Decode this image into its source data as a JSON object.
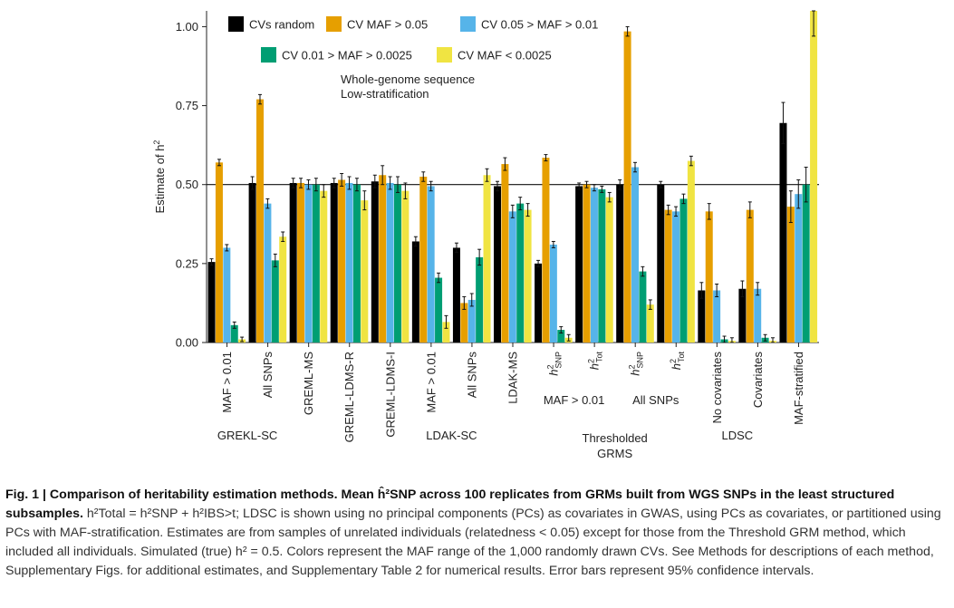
{
  "chart_data": {
    "type": "bar",
    "ylabel": "Estimate of h²",
    "ylim": [
      0,
      1.05
    ],
    "yticks": [
      0,
      0.25,
      0.5,
      0.75,
      1.0
    ],
    "ytick_labels": [
      "0.00",
      "0.25",
      "0.50",
      "0.75",
      "1.00"
    ],
    "reference_line": 0.5,
    "legend_placement": "top-center",
    "annotation_lines": [
      "Whole-genome sequence",
      "Low-stratification"
    ],
    "series": [
      {
        "name": "CVs random",
        "color": "#000000"
      },
      {
        "name": "CV MAF > 0.05",
        "color": "#E69F00"
      },
      {
        "name": "CV 0.05 > MAF > 0.01",
        "color": "#56B4E9"
      },
      {
        "name": "CV 0.01 > MAF > 0.0025",
        "color": "#009E73"
      },
      {
        "name": "CV MAF < 0.0025",
        "color": "#F0E442"
      }
    ],
    "categories": [
      {
        "label": "MAF > 0.01",
        "values": [
          0.255,
          0.57,
          0.3,
          0.055,
          0.01
        ],
        "errors": [
          0.01,
          0.01,
          0.01,
          0.01,
          0.007
        ]
      },
      {
        "label": "All SNPs",
        "values": [
          0.505,
          0.77,
          0.44,
          0.26,
          0.335
        ],
        "errors": [
          0.02,
          0.015,
          0.015,
          0.02,
          0.015
        ]
      },
      {
        "label": "GREML-MS",
        "values": [
          0.505,
          0.505,
          0.5,
          0.5,
          0.48
        ],
        "errors": [
          0.015,
          0.015,
          0.015,
          0.02,
          0.02
        ]
      },
      {
        "label": "GREML-LDMS-R",
        "values": [
          0.505,
          0.515,
          0.505,
          0.5,
          0.45
        ],
        "errors": [
          0.015,
          0.02,
          0.02,
          0.02,
          0.03
        ]
      },
      {
        "label": "GREML-LDMS-I",
        "values": [
          0.51,
          0.53,
          0.505,
          0.5,
          0.48
        ],
        "errors": [
          0.02,
          0.03,
          0.02,
          0.025,
          0.025
        ]
      },
      {
        "label": "MAF > 0.01",
        "values": [
          0.32,
          0.525,
          0.495,
          0.205,
          0.065
        ],
        "errors": [
          0.015,
          0.015,
          0.015,
          0.015,
          0.02
        ]
      },
      {
        "label": "All SNPs",
        "values": [
          0.3,
          0.125,
          0.135,
          0.27,
          0.53
        ],
        "errors": [
          0.015,
          0.02,
          0.02,
          0.025,
          0.02
        ]
      },
      {
        "label": "LDAK-MS",
        "values": [
          0.495,
          0.565,
          0.415,
          0.44,
          0.42
        ],
        "errors": [
          0.015,
          0.02,
          0.02,
          0.02,
          0.02
        ]
      },
      {
        "label": "h²SNP",
        "values": [
          0.25,
          0.585,
          0.31,
          0.04,
          0.015
        ],
        "errors": [
          0.01,
          0.01,
          0.01,
          0.01,
          0.01
        ]
      },
      {
        "label": "h²Tot",
        "values": [
          0.495,
          0.5,
          0.49,
          0.485,
          0.46
        ],
        "errors": [
          0.01,
          0.01,
          0.01,
          0.01,
          0.015
        ]
      },
      {
        "label": "h²SNP",
        "values": [
          0.5,
          0.985,
          0.555,
          0.225,
          0.12
        ],
        "errors": [
          0.015,
          0.015,
          0.015,
          0.015,
          0.015
        ]
      },
      {
        "label": "h²Tot",
        "values": [
          0.5,
          0.42,
          0.415,
          0.455,
          0.575
        ],
        "errors": [
          0.01,
          0.015,
          0.015,
          0.015,
          0.015
        ]
      },
      {
        "label": "No covariates",
        "values": [
          0.165,
          0.415,
          0.165,
          0.01,
          0.005
        ],
        "errors": [
          0.025,
          0.025,
          0.02,
          0.01,
          0.01
        ]
      },
      {
        "label": "Covariates",
        "values": [
          0.17,
          0.42,
          0.17,
          0.015,
          0.005
        ],
        "errors": [
          0.025,
          0.025,
          0.02,
          0.01,
          0.01
        ]
      },
      {
        "label": "MAF-stratified",
        "values": [
          0.695,
          0.43,
          0.47,
          0.5,
          1.05
        ],
        "errors": [
          0.065,
          0.05,
          0.045,
          0.055,
          0.08
        ]
      }
    ],
    "tick_labels_display": [
      {
        "main": "MAF > 0.01"
      },
      {
        "main": "All SNPs"
      },
      {
        "main": "GREML-MS"
      },
      {
        "main": "GREML-LDMS-R"
      },
      {
        "main": "GREML-LDMS-I"
      },
      {
        "main": "MAF > 0.01"
      },
      {
        "main": "All SNPs"
      },
      {
        "main": "LDAK-MS"
      },
      {
        "main": "h",
        "sup": "2",
        "sub": "SNP"
      },
      {
        "main": "h",
        "sup": "2",
        "sub": "Tot"
      },
      {
        "main": "h",
        "sup": "2",
        "sub": "SNP"
      },
      {
        "main": "h",
        "sup": "2",
        "sub": "Tot"
      },
      {
        "main": "No covariates"
      },
      {
        "main": "Covariates"
      },
      {
        "main": "MAF-stratified"
      }
    ],
    "group_labels": [
      {
        "text": "GREKL-SC",
        "span": [
          0,
          1
        ]
      },
      {
        "text": "LDAK-SC",
        "span": [
          5,
          6
        ]
      },
      {
        "text": "MAF > 0.01",
        "span": [
          8,
          9
        ]
      },
      {
        "text": "All SNPs",
        "span": [
          10,
          11
        ]
      },
      {
        "text": "Thresholded",
        "span": [
          8,
          11
        ]
      },
      {
        "text": "GRMS",
        "span": [
          8,
          11
        ]
      },
      {
        "text": "LDSC",
        "span": [
          12,
          13
        ]
      }
    ]
  },
  "caption": {
    "lead": "Fig. 1 | Comparison of heritability estimation methods. Mean ĥ²SNP across 100 replicates from GRMs built from WGS SNPs in the least structured subsamples.",
    "body": "h²Total = h²SNP + h²IBS>t; LDSC is shown using no principal components (PCs) as covariates in GWAS, using PCs as covariates, or partitioned using PCs with MAF-stratification. Estimates are from samples of unrelated individuals (relatedness < 0.05) except for those from the Threshold GRM method, which included all individuals. Simulated (true) h² = 0.5. Colors represent the MAF range of the 1,000 randomly drawn CVs. See Methods for descriptions of each method, Supplementary Figs. for additional estimates, and Supplementary Table 2 for numerical results. Error bars represent 95% confidence intervals."
  }
}
